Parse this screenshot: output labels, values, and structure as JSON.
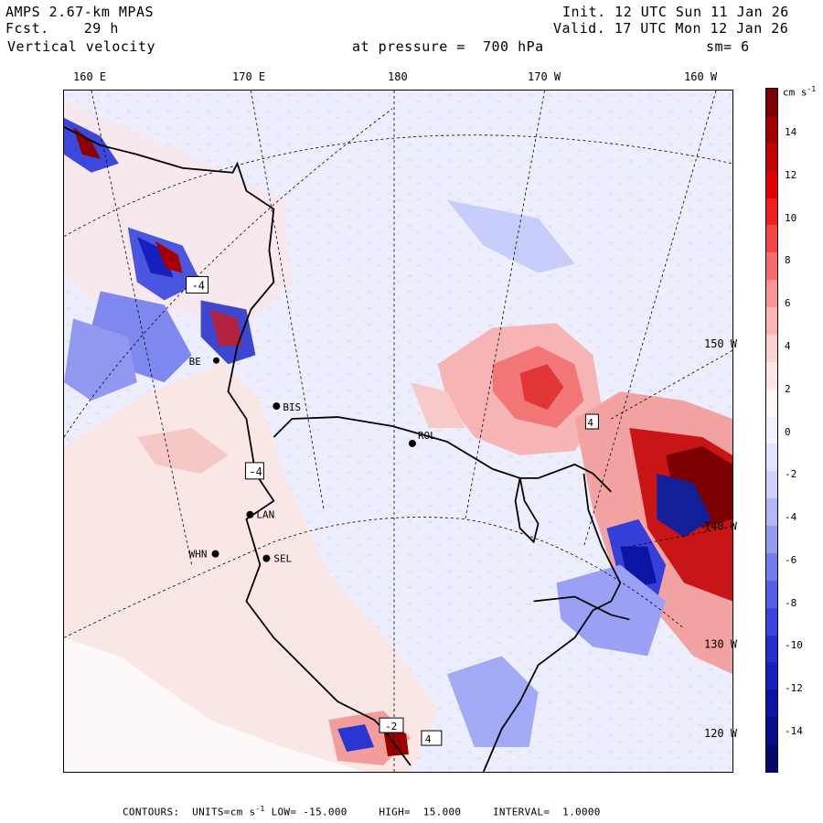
{
  "header": {
    "model": "AMPS 2.67-km MPAS",
    "fcst_label": "Fcst.",
    "fcst_value": "29 h",
    "field": "Vertical velocity",
    "init": "Init. 12 UTC Sun 11 Jan 26",
    "valid": "Valid. 17 UTC Mon 12 Jan 26",
    "pressure_label": "at pressure =",
    "pressure_value": "700 hPa",
    "smoothing": "sm= 6"
  },
  "longitude_ticks": [
    "160 E",
    "170 E",
    "180",
    "170 W",
    "160 W"
  ],
  "right_ticks": [
    "150 W",
    "140 W",
    "130 W",
    "120 W"
  ],
  "stations": [
    "BIS",
    "LAN",
    "WHN",
    "SEL",
    "ROL",
    "BE"
  ],
  "box_labels": [
    "-4",
    "-4",
    "-2",
    "4",
    "4"
  ],
  "colorbar": {
    "units": "cm s",
    "units_exp": "-1",
    "labels": [
      "14",
      "12",
      "10",
      "8",
      "6",
      "4",
      "2",
      "0",
      "-2",
      "-4",
      "-6",
      "-8",
      "-10",
      "-12",
      "-14"
    ],
    "colors": [
      "#7f0000",
      "#a30000",
      "#c40000",
      "#e00000",
      "#f01e1e",
      "#f44545",
      "#f86c6c",
      "#fa9393",
      "#fcb4b4",
      "#fdd0d0",
      "#fee6e6",
      "#fff6f6",
      "#f2f2ff",
      "#e1e3fd",
      "#ccd0fb",
      "#b1b7f7",
      "#939bf3",
      "#737ded",
      "#545fe6",
      "#3a45dd",
      "#2530d0",
      "#1620bc",
      "#0c14a3",
      "#070d88",
      "#03086d"
    ]
  },
  "footer": {
    "contours_label": "CONTOURS:",
    "units_label": "UNITS=cm s",
    "units_exp": "-1",
    "low_label": "LOW=",
    "low_value": "-15.000",
    "high_label": "HIGH=",
    "high_value": "15.000",
    "interval_label": "INTERVAL=",
    "interval_value": "1.0000"
  }
}
